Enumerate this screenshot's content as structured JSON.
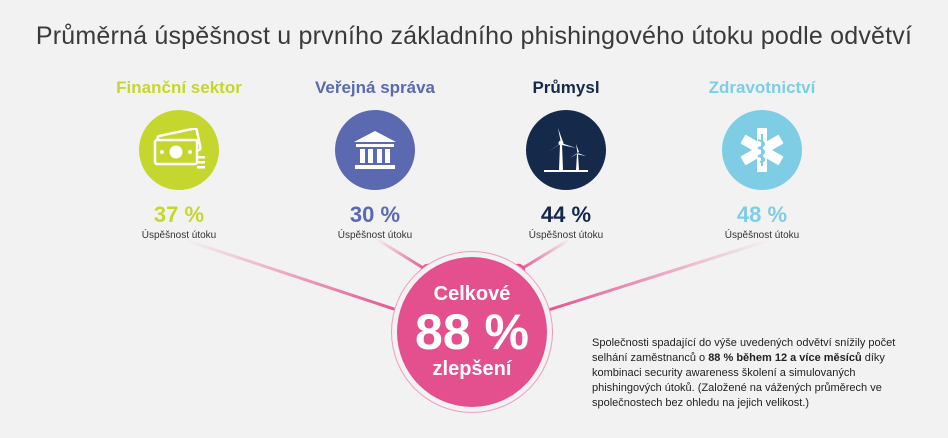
{
  "title": "Průměrná úspěšnost u prvního základního phishingového útoku podle odvětví",
  "sectors": [
    {
      "name": "Finanční sektor",
      "value": "37 %",
      "caption": "Úspěšnost útoku",
      "color": "#c5d62e",
      "icon": "banknotes-icon"
    },
    {
      "name": "Veřejná správa",
      "value": "30 %",
      "caption": "Úspěšnost útoku",
      "color": "#5b6ab0",
      "icon": "government-building-icon"
    },
    {
      "name": "Průmysl",
      "value": "44 %",
      "caption": "Úspěšnost útoku",
      "color": "#15294a",
      "icon": "wind-turbine-icon"
    },
    {
      "name": "Zdravotnictví",
      "value": "48 %",
      "caption": "Úspěšnost útoku",
      "color": "#7fcde4",
      "icon": "medical-star-icon"
    }
  ],
  "hub": {
    "top": "Celkové",
    "value": "88 %",
    "bottom": "zlepšení",
    "color": "#e4508d"
  },
  "note": {
    "part1": "Společnosti spadající do výše uvedených odvětví snížily počet selhání zaměstnanců o ",
    "bold": "88 % během 12 a více měsíců",
    "part2": " díky kombinaci security awareness školení a simulovaných phishingových útoků. (Založené na vážených průměrech ve společnostech bez ohledu na jejich velikost.)"
  }
}
